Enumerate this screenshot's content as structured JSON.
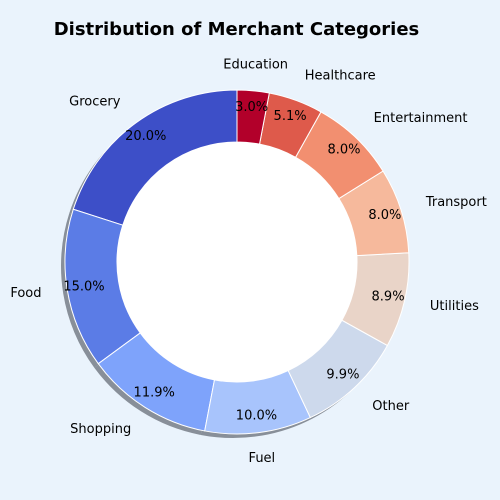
{
  "chart_data": {
    "type": "pie",
    "title": "Distribution of Merchant Categories",
    "donut": true,
    "shadow": true,
    "start_angle_deg": 90,
    "direction": "counterclockwise",
    "slices": [
      {
        "label": "Grocery",
        "pct_label": "20.0%",
        "value": 20.0,
        "color": "#3d4fc8"
      },
      {
        "label": "Food",
        "pct_label": "15.0%",
        "value": 15.0,
        "color": "#5b7ce6"
      },
      {
        "label": "Shopping",
        "pct_label": "11.9%",
        "value": 11.9,
        "color": "#7ea3fb"
      },
      {
        "label": "Fuel",
        "pct_label": "10.0%",
        "value": 10.0,
        "color": "#a8c4fc"
      },
      {
        "label": "Other",
        "pct_label": "9.9%",
        "value": 9.9,
        "color": "#cdd9ec"
      },
      {
        "label": "Utilities",
        "pct_label": "8.9%",
        "value": 8.9,
        "color": "#e9d4c8"
      },
      {
        "label": "Transport",
        "pct_label": "8.0%",
        "value": 8.0,
        "color": "#f6b99c"
      },
      {
        "label": "Entertainment",
        "pct_label": "8.0%",
        "value": 8.0,
        "color": "#f28f70"
      },
      {
        "label": "Healthcare",
        "pct_label": "5.1%",
        "value": 5.1,
        "color": "#de5a4b"
      },
      {
        "label": "Education",
        "pct_label": "3.0%",
        "value": 3.0,
        "color": "#b2002a"
      }
    ]
  }
}
